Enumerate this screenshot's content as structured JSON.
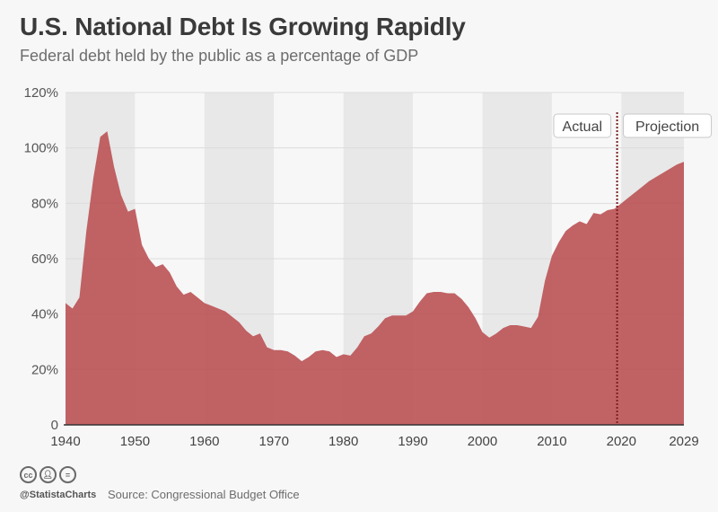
{
  "header": {
    "title": "U.S. National Debt Is Growing Rapidly",
    "subtitle": "Federal debt held by the public as a percentage of GDP"
  },
  "footer": {
    "brand": "@StatistaCharts",
    "source": "Source: Congressional Budget Office",
    "license_icons": [
      "cc-icon",
      "attribution-icon",
      "no-derivatives-icon"
    ]
  },
  "colors": {
    "area": "#b94d51",
    "band_dark": "#e8e8e8",
    "band_light": "#f7f7f7",
    "divider": "#7a1e1e"
  },
  "chart_data": {
    "type": "area",
    "title": "U.S. National Debt Is Growing Rapidly",
    "subtitle": "Federal debt held by the public as a percentage of GDP",
    "xlabel": "",
    "ylabel": "",
    "xlim": [
      1940,
      2029
    ],
    "ylim": [
      0,
      120
    ],
    "x_ticks": [
      1940,
      1950,
      1960,
      1970,
      1980,
      1990,
      2000,
      2010,
      2020,
      2029
    ],
    "y_ticks": [
      0,
      20,
      40,
      60,
      80,
      100,
      120
    ],
    "y_tick_labels": [
      "0",
      "20%",
      "40%",
      "60%",
      "80%",
      "100%",
      "120%"
    ],
    "grid": "alternating vertical decade bands",
    "annotations": [
      {
        "label": "Actual",
        "side": "left",
        "at_year": 2019
      },
      {
        "label": "Projection",
        "side": "right",
        "at_year": 2019
      }
    ],
    "divider_year": 2019,
    "series": [
      {
        "name": "Federal debt held by the public (% of GDP)",
        "x": [
          1940,
          1941,
          1942,
          1943,
          1944,
          1945,
          1946,
          1947,
          1948,
          1949,
          1950,
          1951,
          1952,
          1953,
          1954,
          1955,
          1956,
          1957,
          1958,
          1959,
          1960,
          1961,
          1962,
          1963,
          1964,
          1965,
          1966,
          1967,
          1968,
          1969,
          1970,
          1971,
          1972,
          1973,
          1974,
          1975,
          1976,
          1977,
          1978,
          1979,
          1980,
          1981,
          1982,
          1983,
          1984,
          1985,
          1986,
          1987,
          1988,
          1989,
          1990,
          1991,
          1992,
          1993,
          1994,
          1995,
          1996,
          1997,
          1998,
          1999,
          2000,
          2001,
          2002,
          2003,
          2004,
          2005,
          2006,
          2007,
          2008,
          2009,
          2010,
          2011,
          2012,
          2013,
          2014,
          2015,
          2016,
          2017,
          2018,
          2019,
          2020,
          2021,
          2022,
          2023,
          2024,
          2025,
          2026,
          2027,
          2028,
          2029
        ],
        "values": [
          44,
          42,
          46,
          70,
          89,
          104,
          106,
          93,
          83,
          77,
          78,
          65,
          60,
          57,
          58,
          55,
          50,
          47,
          48,
          46,
          44,
          43,
          42,
          41,
          39,
          37,
          34,
          32,
          33,
          28,
          27,
          27,
          26.5,
          25,
          23,
          24.5,
          26.5,
          27,
          26.5,
          24.5,
          25.5,
          25,
          28,
          32,
          33,
          35.5,
          38.5,
          39.5,
          39.5,
          39.5,
          41,
          44.5,
          47.5,
          48,
          48,
          47.5,
          47.5,
          45.5,
          42.5,
          38.5,
          33.5,
          31.5,
          33,
          35,
          36,
          36,
          35.5,
          35,
          39,
          52,
          61,
          66,
          70,
          72,
          73.5,
          72.5,
          76.5,
          76,
          77.5,
          78,
          80,
          82,
          84,
          86,
          88,
          89.5,
          91,
          92.5,
          94,
          95
        ]
      }
    ]
  }
}
